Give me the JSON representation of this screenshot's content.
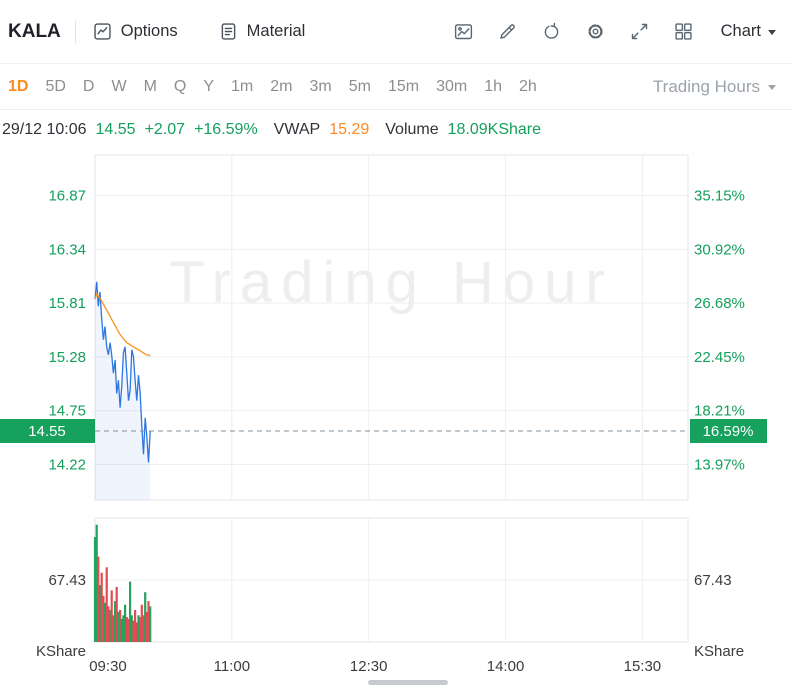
{
  "toolbar": {
    "ticker": "KALA",
    "options_label": "Options",
    "material_label": "Material",
    "chart_dropdown_label": "Chart",
    "icon_names": [
      "snapshot-icon",
      "draw-icon",
      "refresh-icon",
      "settings-gear-icon",
      "fullscreen-icon",
      "grid-layout-icon"
    ]
  },
  "timeframes": {
    "items": [
      "1D",
      "5D",
      "D",
      "W",
      "M",
      "Q",
      "Y",
      "1m",
      "2m",
      "3m",
      "5m",
      "15m",
      "30m",
      "1h",
      "2h"
    ],
    "active": "1D",
    "right_label": "Trading Hours"
  },
  "info": {
    "datetime": "29/12 10:06",
    "price": "14.55",
    "change": "+2.07",
    "change_pct": "+16.59%",
    "vwap_label": "VWAP",
    "vwap": "15.29",
    "volume_label": "Volume",
    "volume": "18.09KShare"
  },
  "colors": {
    "accent_green": "#14a05c",
    "accent_orange": "#ff8a1e",
    "price_line": "#2e77e0",
    "vwap_line": "#f7941d",
    "grid": "#edeff1",
    "frame": "#e3e6e8",
    "badge_bg": "#16a15c",
    "dashed_line": "#7c909c",
    "axis_dark": "#3c3c3c",
    "watermark": "#eceef0",
    "volume_up": "#27a15e",
    "volume_down": "#e24b52"
  },
  "chart_data": {
    "type": "line",
    "watermark": "Trading Hour",
    "x_axis": {
      "labels": [
        "09:30",
        "11:00",
        "12:30",
        "14:00",
        "15:30"
      ],
      "tick_minutes": [
        570,
        660,
        750,
        840,
        930
      ],
      "start_min": 570,
      "end_min": 960
    },
    "price_axis": {
      "labels": [
        "16.87",
        "16.34",
        "15.81",
        "15.28",
        "14.75",
        "14.22"
      ],
      "values": [
        16.87,
        16.34,
        15.81,
        15.28,
        14.75,
        14.22
      ],
      "min": 13.87,
      "max": 17.27
    },
    "pct_axis": {
      "labels": [
        "35.15%",
        "30.92%",
        "26.68%",
        "22.45%",
        "18.21%",
        "13.97%"
      ]
    },
    "current": {
      "price_label": "14.55",
      "pct_label": "16.59%",
      "value": 14.55
    },
    "series": [
      {
        "name": "Price",
        "start_min": 570,
        "step_min": 1.1,
        "values": [
          15.85,
          16.02,
          15.78,
          15.92,
          15.66,
          15.45,
          15.58,
          15.38,
          15.3,
          15.42,
          15.3,
          15.12,
          15.25,
          14.92,
          15.05,
          14.78,
          15.0,
          15.32,
          15.38,
          15.12,
          14.85,
          14.95,
          15.35,
          15.28,
          15.05,
          14.85,
          15.1,
          14.92,
          14.6,
          14.32,
          14.68,
          14.5,
          14.24,
          14.55
        ]
      },
      {
        "name": "VWAP",
        "start_min": 570,
        "step_min": 1.1,
        "values": [
          15.85,
          15.9,
          15.88,
          15.86,
          15.83,
          15.8,
          15.77,
          15.74,
          15.71,
          15.68,
          15.65,
          15.62,
          15.59,
          15.56,
          15.53,
          15.5,
          15.48,
          15.46,
          15.44,
          15.42,
          15.41,
          15.4,
          15.39,
          15.38,
          15.37,
          15.36,
          15.35,
          15.34,
          15.33,
          15.32,
          15.31,
          15.3,
          15.3,
          15.29
        ]
      }
    ],
    "volume_pane": {
      "axis_label": "67.43",
      "axis_value": 67.43,
      "unit_label": "KShare",
      "max": 135,
      "values": [
        118,
        132,
        96,
        64,
        78,
        52,
        44,
        84,
        40,
        36,
        58,
        30,
        46,
        62,
        34,
        36,
        26,
        30,
        42,
        28,
        26,
        68,
        30,
        24,
        36,
        22,
        30,
        28,
        42,
        30,
        56,
        34,
        46,
        40
      ]
    }
  }
}
